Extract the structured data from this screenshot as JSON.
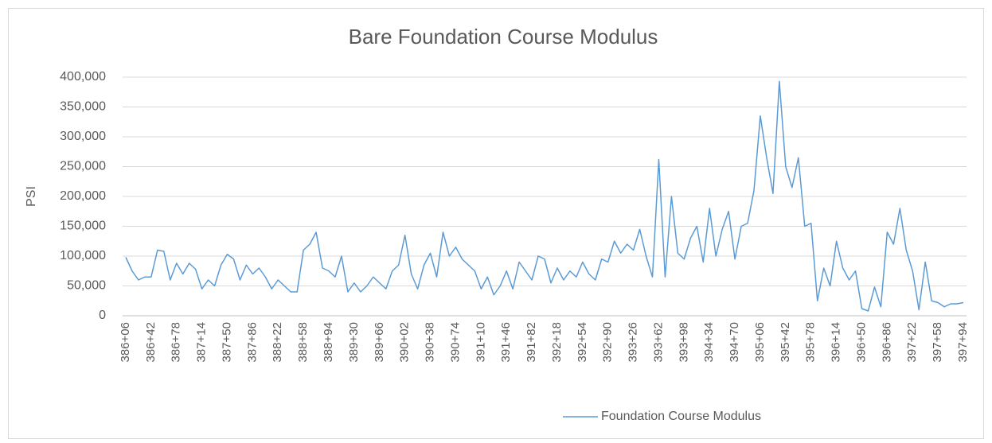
{
  "chart_data": {
    "type": "line",
    "title": "Bare Foundation Course Modulus",
    "y_label": "PSI",
    "categories": [
      "386+06",
      null,
      null,
      null,
      "386+42",
      null,
      null,
      null,
      "386+78",
      null,
      null,
      null,
      "387+14",
      null,
      null,
      null,
      "387+50",
      null,
      null,
      null,
      "387+86",
      null,
      null,
      null,
      "388+22",
      null,
      null,
      null,
      "388+58",
      null,
      null,
      null,
      "388+94",
      null,
      null,
      null,
      "389+30",
      null,
      null,
      null,
      "389+66",
      null,
      null,
      null,
      "390+02",
      null,
      null,
      null,
      "390+38",
      null,
      null,
      null,
      "390+74",
      null,
      null,
      null,
      "391+10",
      null,
      null,
      null,
      "391+46",
      null,
      null,
      null,
      "391+82",
      null,
      null,
      null,
      "392+18",
      null,
      null,
      null,
      "392+54",
      null,
      null,
      null,
      "392+90",
      null,
      null,
      null,
      "393+26",
      null,
      null,
      null,
      "393+62",
      null,
      null,
      null,
      "393+98",
      null,
      null,
      null,
      "394+34",
      null,
      null,
      null,
      "394+70",
      null,
      null,
      null,
      "395+06",
      null,
      null,
      null,
      "395+42",
      null,
      null,
      null,
      "395+78",
      null,
      null,
      null,
      "396+14",
      null,
      null,
      null,
      "396+50",
      null,
      null,
      null,
      "396+86",
      null,
      null,
      null,
      "397+22",
      null,
      null,
      null,
      "397+58",
      null,
      null,
      null,
      "397+94"
    ],
    "series": [
      {
        "name": "Foundation Course Modulus",
        "color": "#5b9bd5",
        "values": [
          98000,
          75000,
          60000,
          65000,
          65000,
          110000,
          108000,
          60000,
          88000,
          70000,
          88000,
          78000,
          45000,
          60000,
          50000,
          85000,
          103000,
          95000,
          60000,
          85000,
          70000,
          80000,
          65000,
          45000,
          60000,
          50000,
          40000,
          40000,
          110000,
          120000,
          140000,
          80000,
          75000,
          65000,
          100000,
          40000,
          55000,
          40000,
          50000,
          65000,
          55000,
          45000,
          75000,
          85000,
          135000,
          70000,
          45000,
          85000,
          105000,
          65000,
          140000,
          100000,
          115000,
          95000,
          85000,
          75000,
          45000,
          65000,
          35000,
          50000,
          75000,
          45000,
          90000,
          75000,
          60000,
          100000,
          95000,
          55000,
          80000,
          60000,
          75000,
          65000,
          90000,
          70000,
          60000,
          95000,
          90000,
          125000,
          105000,
          120000,
          110000,
          145000,
          100000,
          65000,
          262000,
          65000,
          200000,
          105000,
          95000,
          130000,
          150000,
          90000,
          180000,
          100000,
          145000,
          175000,
          95000,
          150000,
          155000,
          210000,
          335000,
          265000,
          205000,
          393000,
          250000,
          215000,
          265000,
          150000,
          155000,
          25000,
          80000,
          50000,
          125000,
          80000,
          60000,
          75000,
          12000,
          8000,
          48000,
          15000,
          140000,
          120000,
          180000,
          110000,
          75000,
          10000,
          90000,
          25000,
          22000,
          15000,
          20000,
          20000,
          22000
        ]
      }
    ],
    "ylim": [
      0,
      400000
    ],
    "yticks": [
      0,
      {
        "value": 50000,
        "label": "50,000"
      },
      {
        "value": 100000,
        "label": "100,000"
      },
      {
        "value": 150000,
        "label": "150,000"
      },
      {
        "value": 200000,
        "label": "200,000"
      },
      {
        "value": 250000,
        "label": "250,000"
      },
      {
        "value": 300000,
        "label": "300,000"
      },
      {
        "value": 350000,
        "label": "350,000"
      },
      {
        "value": 400000,
        "label": "400,000"
      }
    ],
    "grid": true,
    "legend": "bottom"
  }
}
